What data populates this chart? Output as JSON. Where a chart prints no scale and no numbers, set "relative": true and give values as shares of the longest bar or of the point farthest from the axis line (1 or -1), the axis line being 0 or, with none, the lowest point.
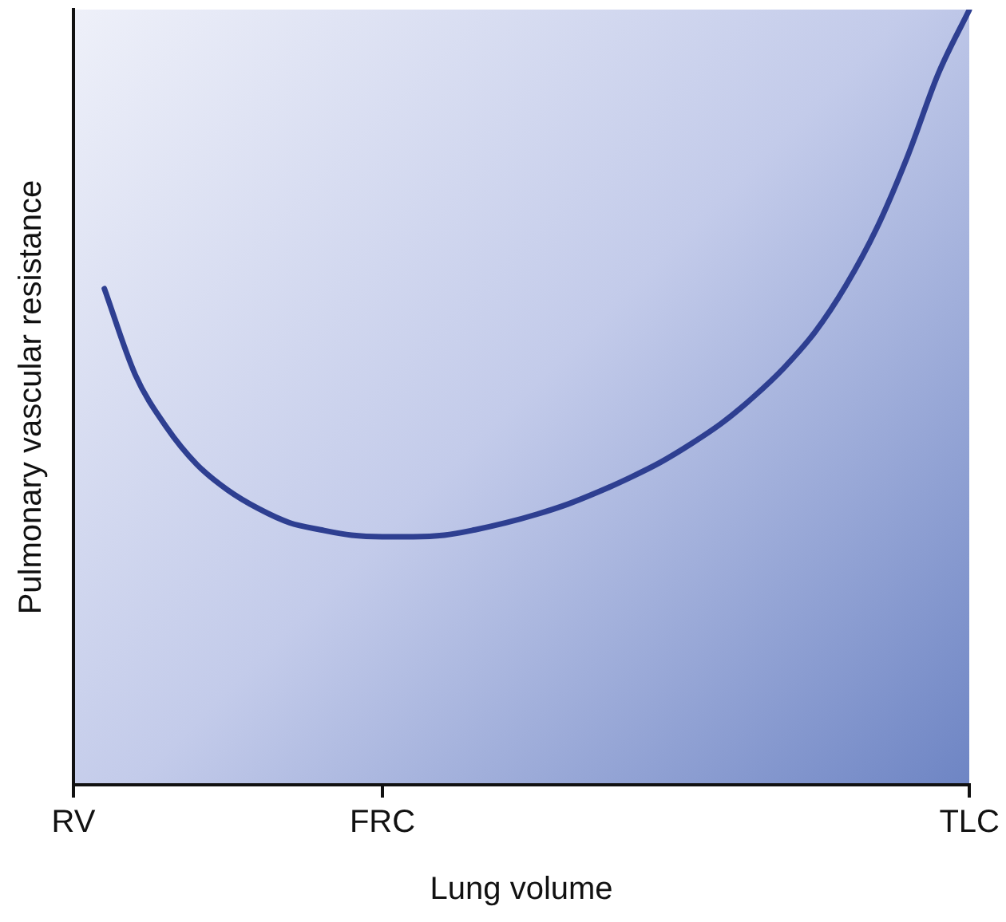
{
  "chart_data": {
    "type": "line",
    "relative": true,
    "xlabel": "Lung volume",
    "ylabel": "Pulmonary vascular resistance",
    "tick_labels": "x",
    "grid": false,
    "legend": false,
    "marker": "none",
    "line_style": "solid",
    "categories": [
      "RV",
      null,
      null,
      null,
      null,
      null,
      null,
      null,
      null,
      null,
      "FRC",
      null,
      null,
      null,
      null,
      null,
      null,
      null,
      null,
      null,
      null,
      null,
      null,
      null,
      null,
      null,
      null,
      null,
      null,
      "TLC"
    ],
    "series": [
      {
        "color": "#2e3f91",
        "values": [
          null,
          0.64,
          0.529,
          0.462,
          0.413,
          0.38,
          0.356,
          0.338,
          0.329,
          0.322,
          0.32,
          0.32,
          0.322,
          0.329,
          0.338,
          0.349,
          0.362,
          0.378,
          0.396,
          0.416,
          0.44,
          0.467,
          0.5,
          0.538,
          0.584,
          0.644,
          0.718,
          0.811,
          0.918,
          1
        ]
      }
    ]
  }
}
